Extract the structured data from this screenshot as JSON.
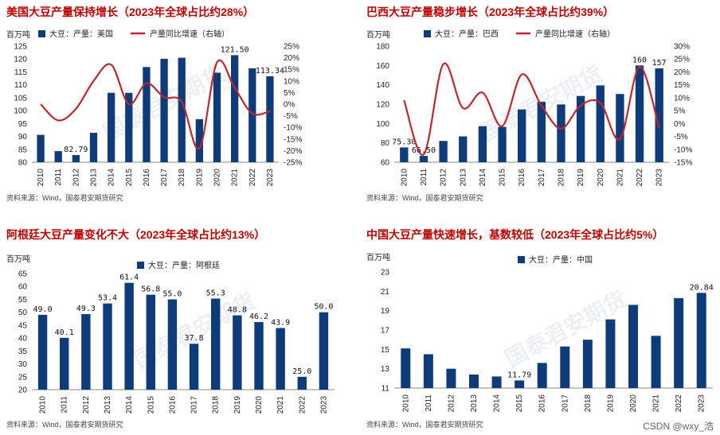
{
  "colors": {
    "bar": "#0e3c7a",
    "line": "#c0272d",
    "title": "#c00000",
    "axis": "#333333"
  },
  "watermark": "国泰君安期货",
  "footer_credit": "CSDN @wxy_浩",
  "chart_data": [
    {
      "type": "bar",
      "title": "美国大豆产量保持增长（2023年全球占比约28%）",
      "unit_label": "百万吨",
      "categories": [
        "2010",
        "2011",
        "2012",
        "2013",
        "2014",
        "2015",
        "2016",
        "2017",
        "2018",
        "2019",
        "2020",
        "2021",
        "2022",
        "2023"
      ],
      "series": [
        {
          "name": "大豆：产量：美国",
          "type": "bar",
          "values": [
            90.6,
            84.3,
            82.79,
            91.4,
            106.9,
            106.9,
            116.9,
            120.1,
            120.5,
            96.7,
            114.7,
            121.5,
            116.4,
            113.34
          ]
        },
        {
          "name": "产量同比增速（右轴）",
          "type": "line",
          "axis": "right",
          "values": [
            0,
            -7,
            -2,
            10,
            17,
            0,
            9,
            3,
            1,
            -19,
            18,
            7,
            -4,
            -3
          ]
        }
      ],
      "data_labels": {
        "2012": "82.79",
        "2021": "121.50",
        "2023": "113.34"
      },
      "ylim": [
        80,
        125
      ],
      "yticks": [
        80,
        85,
        90,
        95,
        100,
        105,
        110,
        115,
        120,
        125
      ],
      "y2lim": [
        -25,
        25
      ],
      "y2ticks": [
        "25%",
        "20%",
        "15%",
        "10%",
        "5%",
        "0%",
        "-5%",
        "-10%",
        "-15%",
        "-20%",
        "-25%"
      ],
      "source": "资料来源：Wind，国泰君安期货研究"
    },
    {
      "type": "bar",
      "title": "巴西大豆产量稳步增长（2023年全球占比约39%）",
      "unit_label": "百万吨",
      "categories": [
        "2010",
        "2011",
        "2012",
        "2013",
        "2014",
        "2015",
        "2016",
        "2017",
        "2018",
        "2019",
        "2020",
        "2021",
        "2022",
        "2023"
      ],
      "series": [
        {
          "name": "大豆：产量：巴西",
          "type": "bar",
          "values": [
            75.3,
            66.5,
            82.0,
            86.7,
            97.2,
            96.5,
            114.6,
            122.5,
            119.7,
            128.5,
            139.4,
            130.5,
            160,
            157
          ]
        },
        {
          "name": "产量同比增速（右轴）",
          "type": "line",
          "axis": "right",
          "values": [
            9,
            -12,
            23,
            6,
            12,
            -1,
            19,
            7,
            -2,
            7,
            8,
            -6,
            22,
            -2
          ]
        }
      ],
      "data_labels": {
        "2010": "75.30",
        "2011": "66.50",
        "2022": "160",
        "2023": "157"
      },
      "ylim": [
        60,
        180
      ],
      "yticks": [
        60,
        80,
        100,
        120,
        140,
        160,
        180
      ],
      "y2lim": [
        -15,
        30
      ],
      "y2ticks": [
        "30%",
        "25%",
        "20%",
        "15%",
        "10%",
        "5%",
        "0%",
        "-5%",
        "-10%",
        "-15%"
      ],
      "source": "资料来源：Wind，国泰君安期货研究"
    },
    {
      "type": "bar",
      "title": "阿根廷大豆产量变化不大（2023年全球占比约13%）",
      "unit_label": "百万吨",
      "categories": [
        "2010",
        "2011",
        "2012",
        "2013",
        "2014",
        "2015",
        "2016",
        "2017",
        "2018",
        "2019",
        "2020",
        "2021",
        "2022",
        "2023"
      ],
      "series": [
        {
          "name": "大豆：产量：阿根廷",
          "type": "bar",
          "values": [
            49.0,
            40.1,
            49.3,
            53.4,
            61.4,
            56.8,
            55.0,
            37.8,
            55.3,
            48.8,
            46.2,
            43.9,
            25.0,
            50.0
          ]
        }
      ],
      "data_labels": {
        "2010": "49.0",
        "2011": "40.1",
        "2012": "49.3",
        "2013": "53.4",
        "2014": "61.4",
        "2015": "56.8",
        "2016": "55.0",
        "2017": "37.8",
        "2018": "55.3",
        "2019": "48.8",
        "2020": "46.2",
        "2021": "43.9",
        "2022": "25.0",
        "2023": "50.0"
      },
      "ylim": [
        20,
        65
      ],
      "yticks": [
        20,
        25,
        30,
        35,
        40,
        45,
        50,
        55,
        60,
        65
      ],
      "source": "资料来源：Wind，国泰君安期货研究"
    },
    {
      "type": "bar",
      "title": "中国大豆产量快速增长，基数较低（2023年全球占比约5%）",
      "unit_label": "百万吨",
      "categories": [
        "2010",
        "2011",
        "2012",
        "2013",
        "2014",
        "2015",
        "2016",
        "2017",
        "2018",
        "2019",
        "2020",
        "2021",
        "2022",
        "2023"
      ],
      "series": [
        {
          "name": "大豆：产量：中国",
          "type": "bar",
          "values": [
            15.1,
            14.5,
            13.0,
            12.4,
            12.2,
            11.79,
            13.6,
            15.3,
            16.0,
            18.1,
            19.6,
            16.4,
            20.3,
            20.84
          ]
        }
      ],
      "data_labels": {
        "2015": "11.79",
        "2023": "20.84"
      },
      "ylim": [
        11,
        23
      ],
      "yticks": [
        11,
        13,
        15,
        17,
        19,
        21,
        23
      ],
      "source": "资料来源：Wind，国泰君安期货研究"
    }
  ]
}
